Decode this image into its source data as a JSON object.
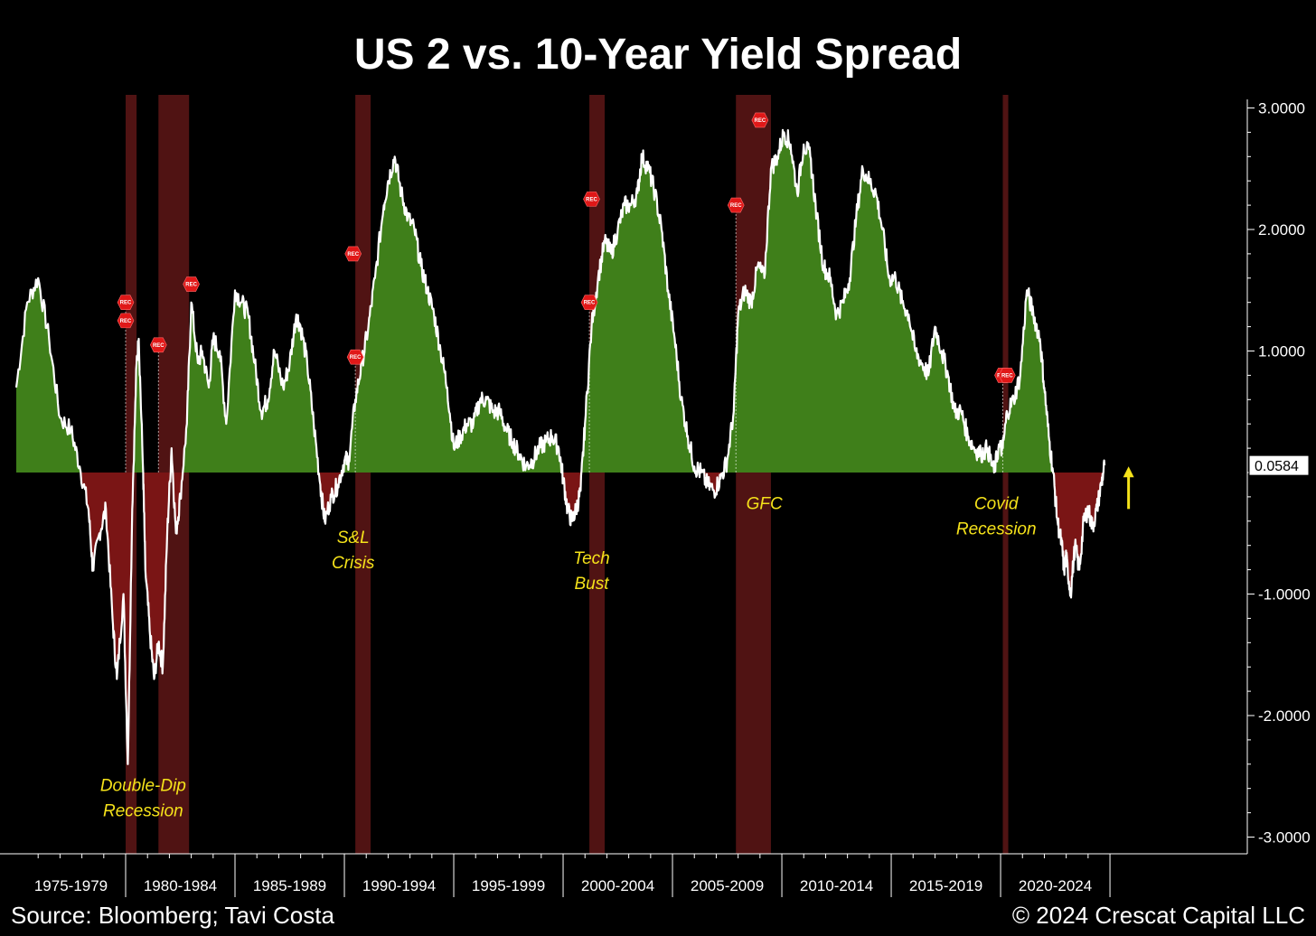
{
  "chart_data": {
    "type": "area",
    "title": "US 2 vs. 10-Year Yield Spread",
    "ylim": [
      -3.0,
      3.0
    ],
    "x_range": [
      1975.0,
      2024.75
    ],
    "y_ticks": [
      {
        "value": 3,
        "label": "3.0000"
      },
      {
        "value": 2,
        "label": "2.0000"
      },
      {
        "value": 1,
        "label": "1.0000"
      },
      {
        "value": -1,
        "label": "-1.0000"
      },
      {
        "value": -2,
        "label": "-2.0000"
      },
      {
        "value": -3,
        "label": "-3.0000"
      }
    ],
    "x_tick_labels": [
      "1975-1979",
      "1980-1984",
      "1985-1989",
      "1990-1994",
      "1995-1999",
      "2000-2004",
      "2005-2009",
      "2010-2014",
      "2015-2019",
      "2020-2024"
    ],
    "last_value": {
      "value": 0.0584,
      "label": "0.0584"
    },
    "positive_color": "#3f7f1a",
    "negative_color": "#7a1515",
    "line_color": "#ffffff",
    "recession_color": "#6b1a1a",
    "annotation_color": "#f5e21a",
    "series": [
      {
        "points": [
          [
            1975.0,
            0.7
          ],
          [
            1975.5,
            1.4
          ],
          [
            1976.0,
            1.6
          ],
          [
            1976.5,
            1.1
          ],
          [
            1977.0,
            0.45
          ],
          [
            1977.5,
            0.35
          ],
          [
            1977.9,
            0.05
          ],
          [
            1978.3,
            -0.3
          ],
          [
            1978.5,
            -0.8
          ],
          [
            1978.8,
            -0.5
          ],
          [
            1979.1,
            -0.3
          ],
          [
            1979.4,
            -1.2
          ],
          [
            1979.6,
            -1.7
          ],
          [
            1979.9,
            -1.0
          ],
          [
            1980.1,
            -2.4
          ],
          [
            1980.3,
            -0.3
          ],
          [
            1980.5,
            0.9
          ],
          [
            1980.6,
            1.1
          ],
          [
            1980.8,
            0.0
          ],
          [
            1980.9,
            -0.8
          ],
          [
            1981.1,
            -1.3
          ],
          [
            1981.3,
            -1.7
          ],
          [
            1981.5,
            -1.4
          ],
          [
            1981.7,
            -1.6
          ],
          [
            1981.9,
            -0.5
          ],
          [
            1982.1,
            0.2
          ],
          [
            1982.3,
            -0.5
          ],
          [
            1982.5,
            -0.2
          ],
          [
            1982.8,
            0.4
          ],
          [
            1983.0,
            1.4
          ],
          [
            1983.3,
            0.9
          ],
          [
            1983.5,
            1.0
          ],
          [
            1983.8,
            0.7
          ],
          [
            1984.0,
            1.1
          ],
          [
            1984.3,
            1.0
          ],
          [
            1984.6,
            0.4
          ],
          [
            1985.0,
            1.5
          ],
          [
            1985.3,
            1.4
          ],
          [
            1985.6,
            1.3
          ],
          [
            1985.9,
            0.9
          ],
          [
            1986.2,
            0.5
          ],
          [
            1986.5,
            0.6
          ],
          [
            1986.8,
            1.0
          ],
          [
            1987.2,
            0.7
          ],
          [
            1987.5,
            0.9
          ],
          [
            1987.8,
            1.3
          ],
          [
            1988.0,
            1.2
          ],
          [
            1988.3,
            0.9
          ],
          [
            1988.6,
            0.4
          ],
          [
            1988.9,
            -0.1
          ],
          [
            1989.1,
            -0.4
          ],
          [
            1989.4,
            -0.2
          ],
          [
            1989.7,
            -0.1
          ],
          [
            1990.0,
            0.1
          ],
          [
            1990.2,
            0.1
          ],
          [
            1990.5,
            0.6
          ],
          [
            1990.8,
            0.9
          ],
          [
            1991.1,
            1.2
          ],
          [
            1991.4,
            1.6
          ],
          [
            1991.8,
            2.2
          ],
          [
            1992.0,
            2.4
          ],
          [
            1992.3,
            2.6
          ],
          [
            1992.6,
            2.3
          ],
          [
            1992.9,
            2.1
          ],
          [
            1993.2,
            2.0
          ],
          [
            1993.5,
            1.7
          ],
          [
            1993.8,
            1.5
          ],
          [
            1994.1,
            1.3
          ],
          [
            1994.4,
            1.0
          ],
          [
            1994.7,
            0.7
          ],
          [
            1995.0,
            0.2
          ],
          [
            1995.3,
            0.3
          ],
          [
            1995.6,
            0.4
          ],
          [
            1995.9,
            0.4
          ],
          [
            1996.2,
            0.6
          ],
          [
            1996.5,
            0.6
          ],
          [
            1996.8,
            0.5
          ],
          [
            1997.1,
            0.5
          ],
          [
            1997.4,
            0.35
          ],
          [
            1997.7,
            0.25
          ],
          [
            1998.0,
            0.15
          ],
          [
            1998.3,
            0.05
          ],
          [
            1998.6,
            0.1
          ],
          [
            1998.9,
            0.2
          ],
          [
            1999.2,
            0.25
          ],
          [
            1999.5,
            0.3
          ],
          [
            1999.8,
            0.2
          ],
          [
            2000.0,
            -0.05
          ],
          [
            2000.2,
            -0.3
          ],
          [
            2000.4,
            -0.4
          ],
          [
            2000.6,
            -0.3
          ],
          [
            2000.8,
            -0.15
          ],
          [
            2001.0,
            0.4
          ],
          [
            2001.3,
            1.2
          ],
          [
            2001.6,
            1.6
          ],
          [
            2001.9,
            1.9
          ],
          [
            2002.2,
            1.8
          ],
          [
            2002.5,
            2.0
          ],
          [
            2002.8,
            2.2
          ],
          [
            2003.1,
            2.2
          ],
          [
            2003.4,
            2.3
          ],
          [
            2003.6,
            2.6
          ],
          [
            2003.9,
            2.5
          ],
          [
            2004.2,
            2.3
          ],
          [
            2004.5,
            2.0
          ],
          [
            2004.8,
            1.5
          ],
          [
            2005.1,
            1.1
          ],
          [
            2005.4,
            0.6
          ],
          [
            2005.7,
            0.3
          ],
          [
            2006.0,
            0.05
          ],
          [
            2006.3,
            0.0
          ],
          [
            2006.6,
            -0.1
          ],
          [
            2006.9,
            -0.15
          ],
          [
            2007.2,
            -0.05
          ],
          [
            2007.5,
            0.1
          ],
          [
            2007.8,
            0.5
          ],
          [
            2008.0,
            1.3
          ],
          [
            2008.3,
            1.5
          ],
          [
            2008.6,
            1.4
          ],
          [
            2008.9,
            1.7
          ],
          [
            2009.2,
            1.6
          ],
          [
            2009.5,
            2.5
          ],
          [
            2009.8,
            2.6
          ],
          [
            2010.1,
            2.8
          ],
          [
            2010.4,
            2.7
          ],
          [
            2010.7,
            2.3
          ],
          [
            2011.0,
            2.7
          ],
          [
            2011.3,
            2.6
          ],
          [
            2011.6,
            2.1
          ],
          [
            2011.9,
            1.7
          ],
          [
            2012.2,
            1.6
          ],
          [
            2012.5,
            1.3
          ],
          [
            2012.8,
            1.4
          ],
          [
            2013.1,
            1.6
          ],
          [
            2013.4,
            2.1
          ],
          [
            2013.7,
            2.5
          ],
          [
            2014.0,
            2.4
          ],
          [
            2014.3,
            2.3
          ],
          [
            2014.6,
            2.0
          ],
          [
            2014.9,
            1.6
          ],
          [
            2015.2,
            1.6
          ],
          [
            2015.5,
            1.4
          ],
          [
            2015.8,
            1.3
          ],
          [
            2016.1,
            1.0
          ],
          [
            2016.4,
            0.9
          ],
          [
            2016.7,
            0.8
          ],
          [
            2017.0,
            1.2
          ],
          [
            2017.3,
            1.0
          ],
          [
            2017.6,
            0.8
          ],
          [
            2017.9,
            0.5
          ],
          [
            2018.2,
            0.5
          ],
          [
            2018.5,
            0.3
          ],
          [
            2018.8,
            0.2
          ],
          [
            2019.1,
            0.15
          ],
          [
            2019.4,
            0.2
          ],
          [
            2019.7,
            0.0
          ],
          [
            2019.9,
            0.2
          ],
          [
            2020.1,
            0.2
          ],
          [
            2020.3,
            0.5
          ],
          [
            2020.6,
            0.6
          ],
          [
            2020.9,
            0.8
          ],
          [
            2021.2,
            1.5
          ],
          [
            2021.5,
            1.3
          ],
          [
            2021.8,
            1.1
          ],
          [
            2022.0,
            0.7
          ],
          [
            2022.2,
            0.3
          ],
          [
            2022.4,
            0.0
          ],
          [
            2022.6,
            -0.4
          ],
          [
            2022.8,
            -0.6
          ],
          [
            2022.9,
            -0.8
          ],
          [
            2023.0,
            -0.7
          ],
          [
            2023.2,
            -1.0
          ],
          [
            2023.4,
            -0.6
          ],
          [
            2023.6,
            -0.8
          ],
          [
            2023.8,
            -0.4
          ],
          [
            2024.0,
            -0.3
          ],
          [
            2024.2,
            -0.45
          ],
          [
            2024.4,
            -0.3
          ],
          [
            2024.6,
            -0.1
          ],
          [
            2024.75,
            0.0584
          ]
        ]
      }
    ],
    "recessions": [
      {
        "start": 1980.0,
        "end": 1980.5,
        "start_value": 1.4,
        "start_value_2": 1.25
      },
      {
        "start": 1981.5,
        "end": 1982.9,
        "start_value": 1.05
      },
      {
        "start": 1990.5,
        "end": 1991.2,
        "start_value": 0.95
      },
      {
        "start": 2001.2,
        "end": 2001.9,
        "start_value": 1.4
      },
      {
        "start": 2007.9,
        "end": 2009.5,
        "start_value": 2.2
      },
      {
        "start": 2020.1,
        "end": 2020.35,
        "start_value": 0.8
      }
    ],
    "extra_rec_markers": [
      {
        "x": 1983.0,
        "value": 1.55
      },
      {
        "x": 1990.4,
        "value": 1.8
      },
      {
        "x": 2001.3,
        "value": 2.25
      },
      {
        "x": 2009.0,
        "value": 2.9
      },
      {
        "x": 2020.3,
        "value": 0.8
      }
    ],
    "rec_marker_label": "REC",
    "annotations": [
      {
        "lines": [
          "Double-Dip",
          "Recession"
        ],
        "x": 1980.8,
        "value": -2.62
      },
      {
        "lines": [
          "S&L",
          "Crisis"
        ],
        "x": 1990.4,
        "value": -0.58
      },
      {
        "lines": [
          "Tech",
          "Bust"
        ],
        "x": 2001.3,
        "value": -0.75
      },
      {
        "lines": [
          "GFC"
        ],
        "x": 2009.2,
        "value": -0.3
      },
      {
        "lines": [
          "Covid",
          "Recession"
        ],
        "x": 2019.8,
        "value": -0.3
      }
    ],
    "arrow": {
      "x": 2025.85,
      "from_value": -0.3,
      "to_value": 0.05
    }
  },
  "footer": {
    "source": "Source: Bloomberg; Tavi Costa",
    "copyright": "© 2024 Crescat Capital LLC"
  }
}
